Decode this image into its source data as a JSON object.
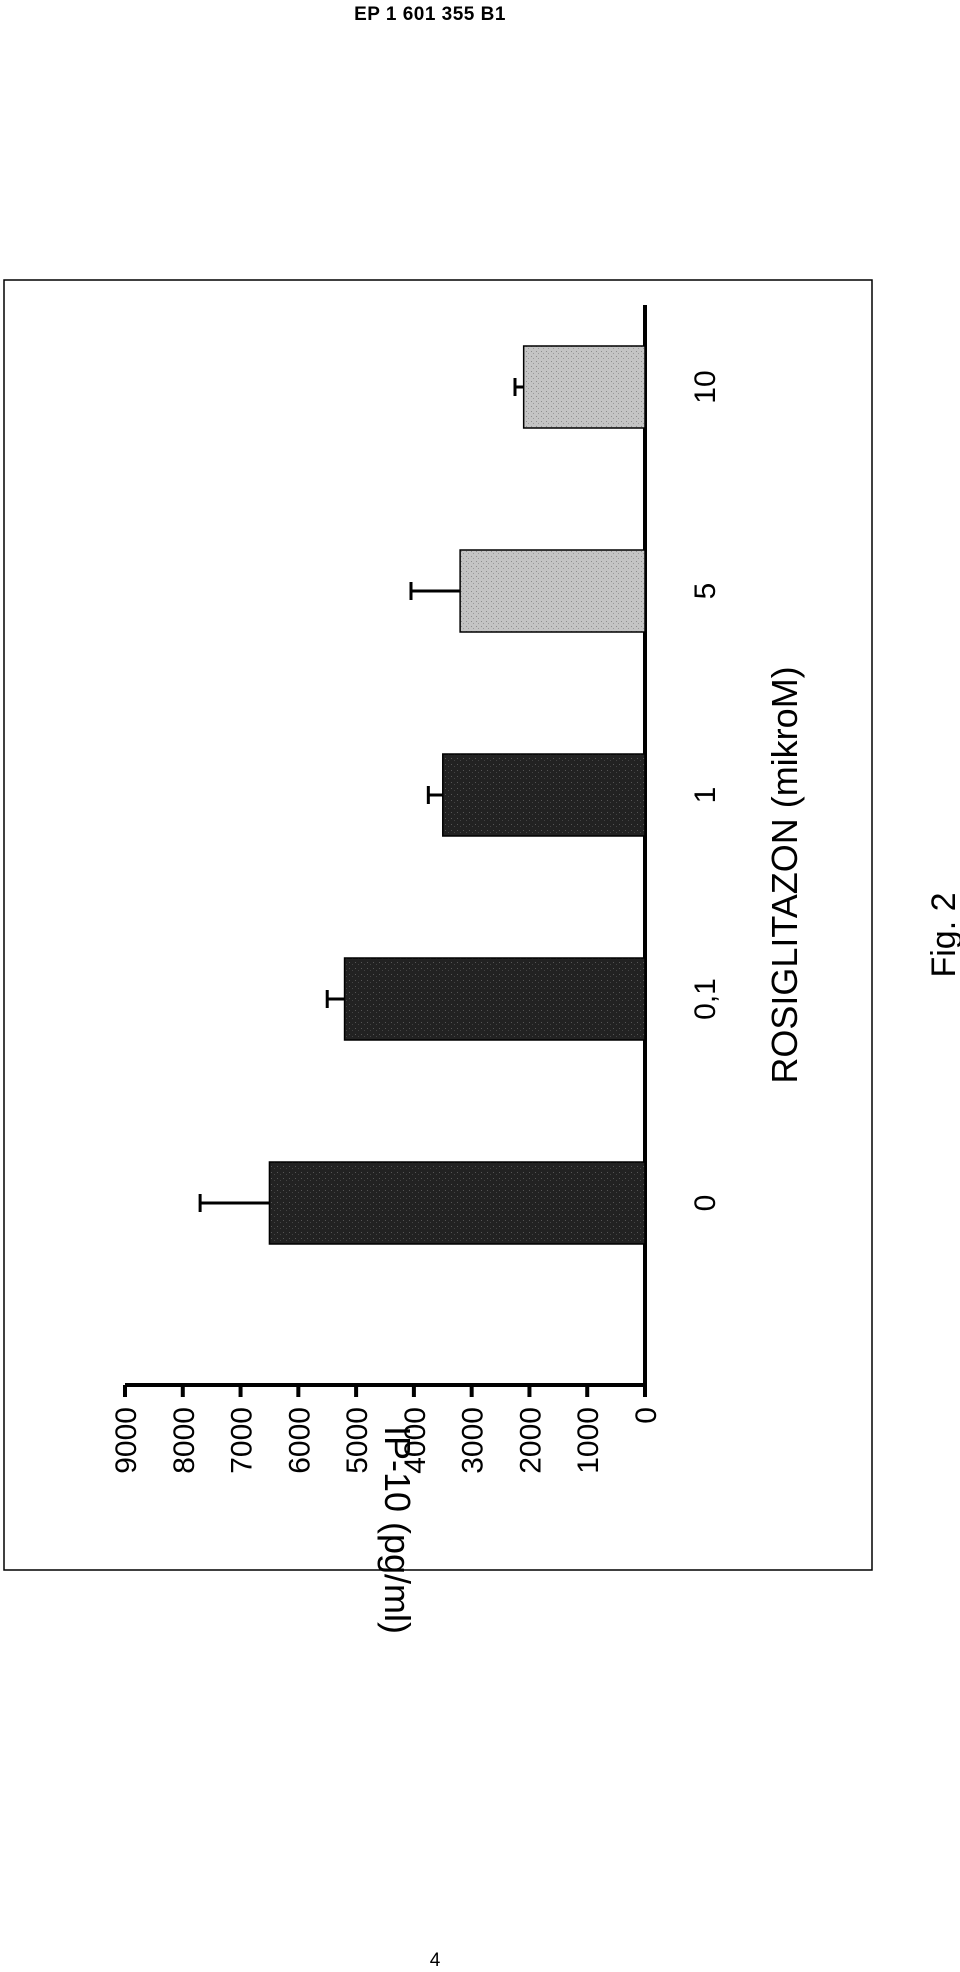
{
  "header": {
    "doc_number": "EP 1 601 355  B1"
  },
  "page_number": "4",
  "figure_caption": "Fig. 2",
  "chart_data": {
    "type": "bar",
    "orientation": "rotated-90-ccw",
    "categories": [
      "0",
      "0,1",
      "1",
      "5",
      "10"
    ],
    "values": [
      6500,
      5200,
      3500,
      3200,
      2100
    ],
    "error_bars": [
      1200,
      300,
      250,
      850,
      150
    ],
    "bar_fills": [
      "#1e1e1e",
      "#262626",
      "#2c2c2c",
      "#b5b5b5",
      "#d0d0d0"
    ],
    "xlabel": "ROSIGLITAZON (mikroM)",
    "ylabel": "IP-10 (pg/ml)",
    "ylim": [
      0,
      9000
    ],
    "yticks": [
      "0",
      "1000",
      "2000",
      "3000",
      "4000",
      "5000",
      "6000",
      "7000",
      "8000",
      "9000"
    ],
    "grid": false,
    "legend": "none"
  }
}
